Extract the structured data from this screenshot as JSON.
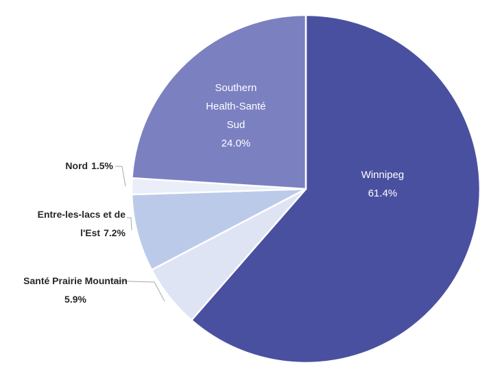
{
  "chart_data": {
    "type": "pie",
    "categories": [
      "Winnipeg",
      "Santé Prairie Mountain",
      "Entre-les-lacs et de l'Est",
      "Nord",
      "Southern Health-Santé Sud"
    ],
    "values": [
      61.4,
      5.9,
      7.2,
      1.5,
      24.0
    ],
    "value_labels": [
      "61.4%",
      "5.9%",
      "7.2%",
      "1.5%",
      "24.0%"
    ],
    "colors": [
      "#4a50a0",
      "#dfe4f4",
      "#bccaea",
      "#e9eef8",
      "#7b80c1"
    ]
  }
}
